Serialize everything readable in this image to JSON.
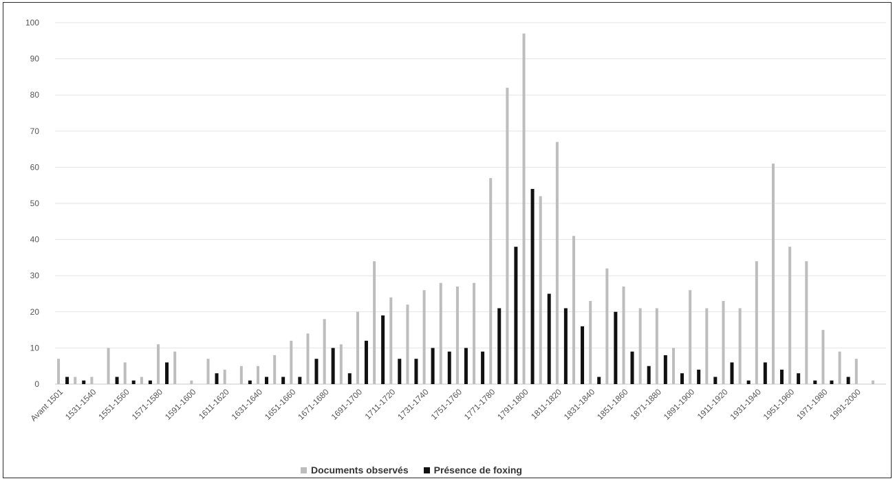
{
  "chart_data": {
    "type": "bar",
    "title": "",
    "xlabel": "",
    "ylabel": "",
    "ylim": [
      0,
      100
    ],
    "yticks": [
      0,
      10,
      20,
      30,
      40,
      50,
      60,
      70,
      80,
      90,
      100
    ],
    "grid": true,
    "legend_position": "bottom",
    "categories": [
      "Avant 1501",
      "1501-1510",
      "1531-1540",
      "1541-1550",
      "1551-1560",
      "1561-1570",
      "1571-1580",
      "1581-1590",
      "1591-1600",
      "1601-1610",
      "1611-1620",
      "1621-1630",
      "1631-1640",
      "1641-1650",
      "1651-1660",
      "1661-1670",
      "1671-1680",
      "1681-1690",
      "1691-1700",
      "1701-1710",
      "1711-1720",
      "1721-1730",
      "1731-1740",
      "1741-1750",
      "1751-1760",
      "1761-1770",
      "1771-1780",
      "1781-1790",
      "1791-1800",
      "1801-1810",
      "1811-1820",
      "1821-1830",
      "1831-1840",
      "1841-1850",
      "1851-1860",
      "1861-1870",
      "1871-1880",
      "1881-1890",
      "1891-1900",
      "1901-1910",
      "1911-1920",
      "1921-1930",
      "1931-1940",
      "1941-1950",
      "1951-1960",
      "1961-1970",
      "1971-1980",
      "1981-1990",
      "1991-2000",
      "2001-2010"
    ],
    "shown_tick_labels": [
      "Avant 1501",
      "1531-1540",
      "1551-1560",
      "1571-1580",
      "1591-1600",
      "1611-1620",
      "1631-1640",
      "1651-1660",
      "1671-1680",
      "1691-1700",
      "1711-1720",
      "1731-1740",
      "1751-1760",
      "1771-1780",
      "1791-1800",
      "1811-1820",
      "1831-1840",
      "1851-1860",
      "1871-1880",
      "1891-1900",
      "1911-1920",
      "1931-1940",
      "1951-1960",
      "1971-1980",
      "1991-2000"
    ],
    "series": [
      {
        "name": "Documents observés",
        "color": "#bdbdbd",
        "values": [
          7,
          2,
          2,
          10,
          6,
          2,
          11,
          9,
          1,
          7,
          4,
          5,
          5,
          8,
          12,
          14,
          18,
          11,
          20,
          34,
          24,
          22,
          26,
          28,
          27,
          28,
          57,
          82,
          97,
          52,
          67,
          41,
          23,
          32,
          27,
          21,
          21,
          10,
          26,
          21,
          23,
          21,
          34,
          61,
          38,
          34,
          15,
          9,
          7,
          1
        ]
      },
      {
        "name": "Présence de foxing",
        "color": "#111111",
        "values": [
          2,
          1,
          0,
          2,
          1,
          1,
          6,
          0,
          0,
          3,
          0,
          1,
          2,
          2,
          2,
          7,
          10,
          3,
          12,
          19,
          7,
          7,
          10,
          9,
          10,
          9,
          21,
          38,
          54,
          25,
          21,
          16,
          2,
          20,
          9,
          5,
          8,
          3,
          4,
          2,
          6,
          1,
          6,
          4,
          3,
          1,
          1,
          2,
          0,
          0
        ]
      }
    ]
  },
  "legend": {
    "items": [
      {
        "label": "Documents observés",
        "color": "#bdbdbd"
      },
      {
        "label": "Présence de foxing",
        "color": "#111111"
      }
    ]
  }
}
